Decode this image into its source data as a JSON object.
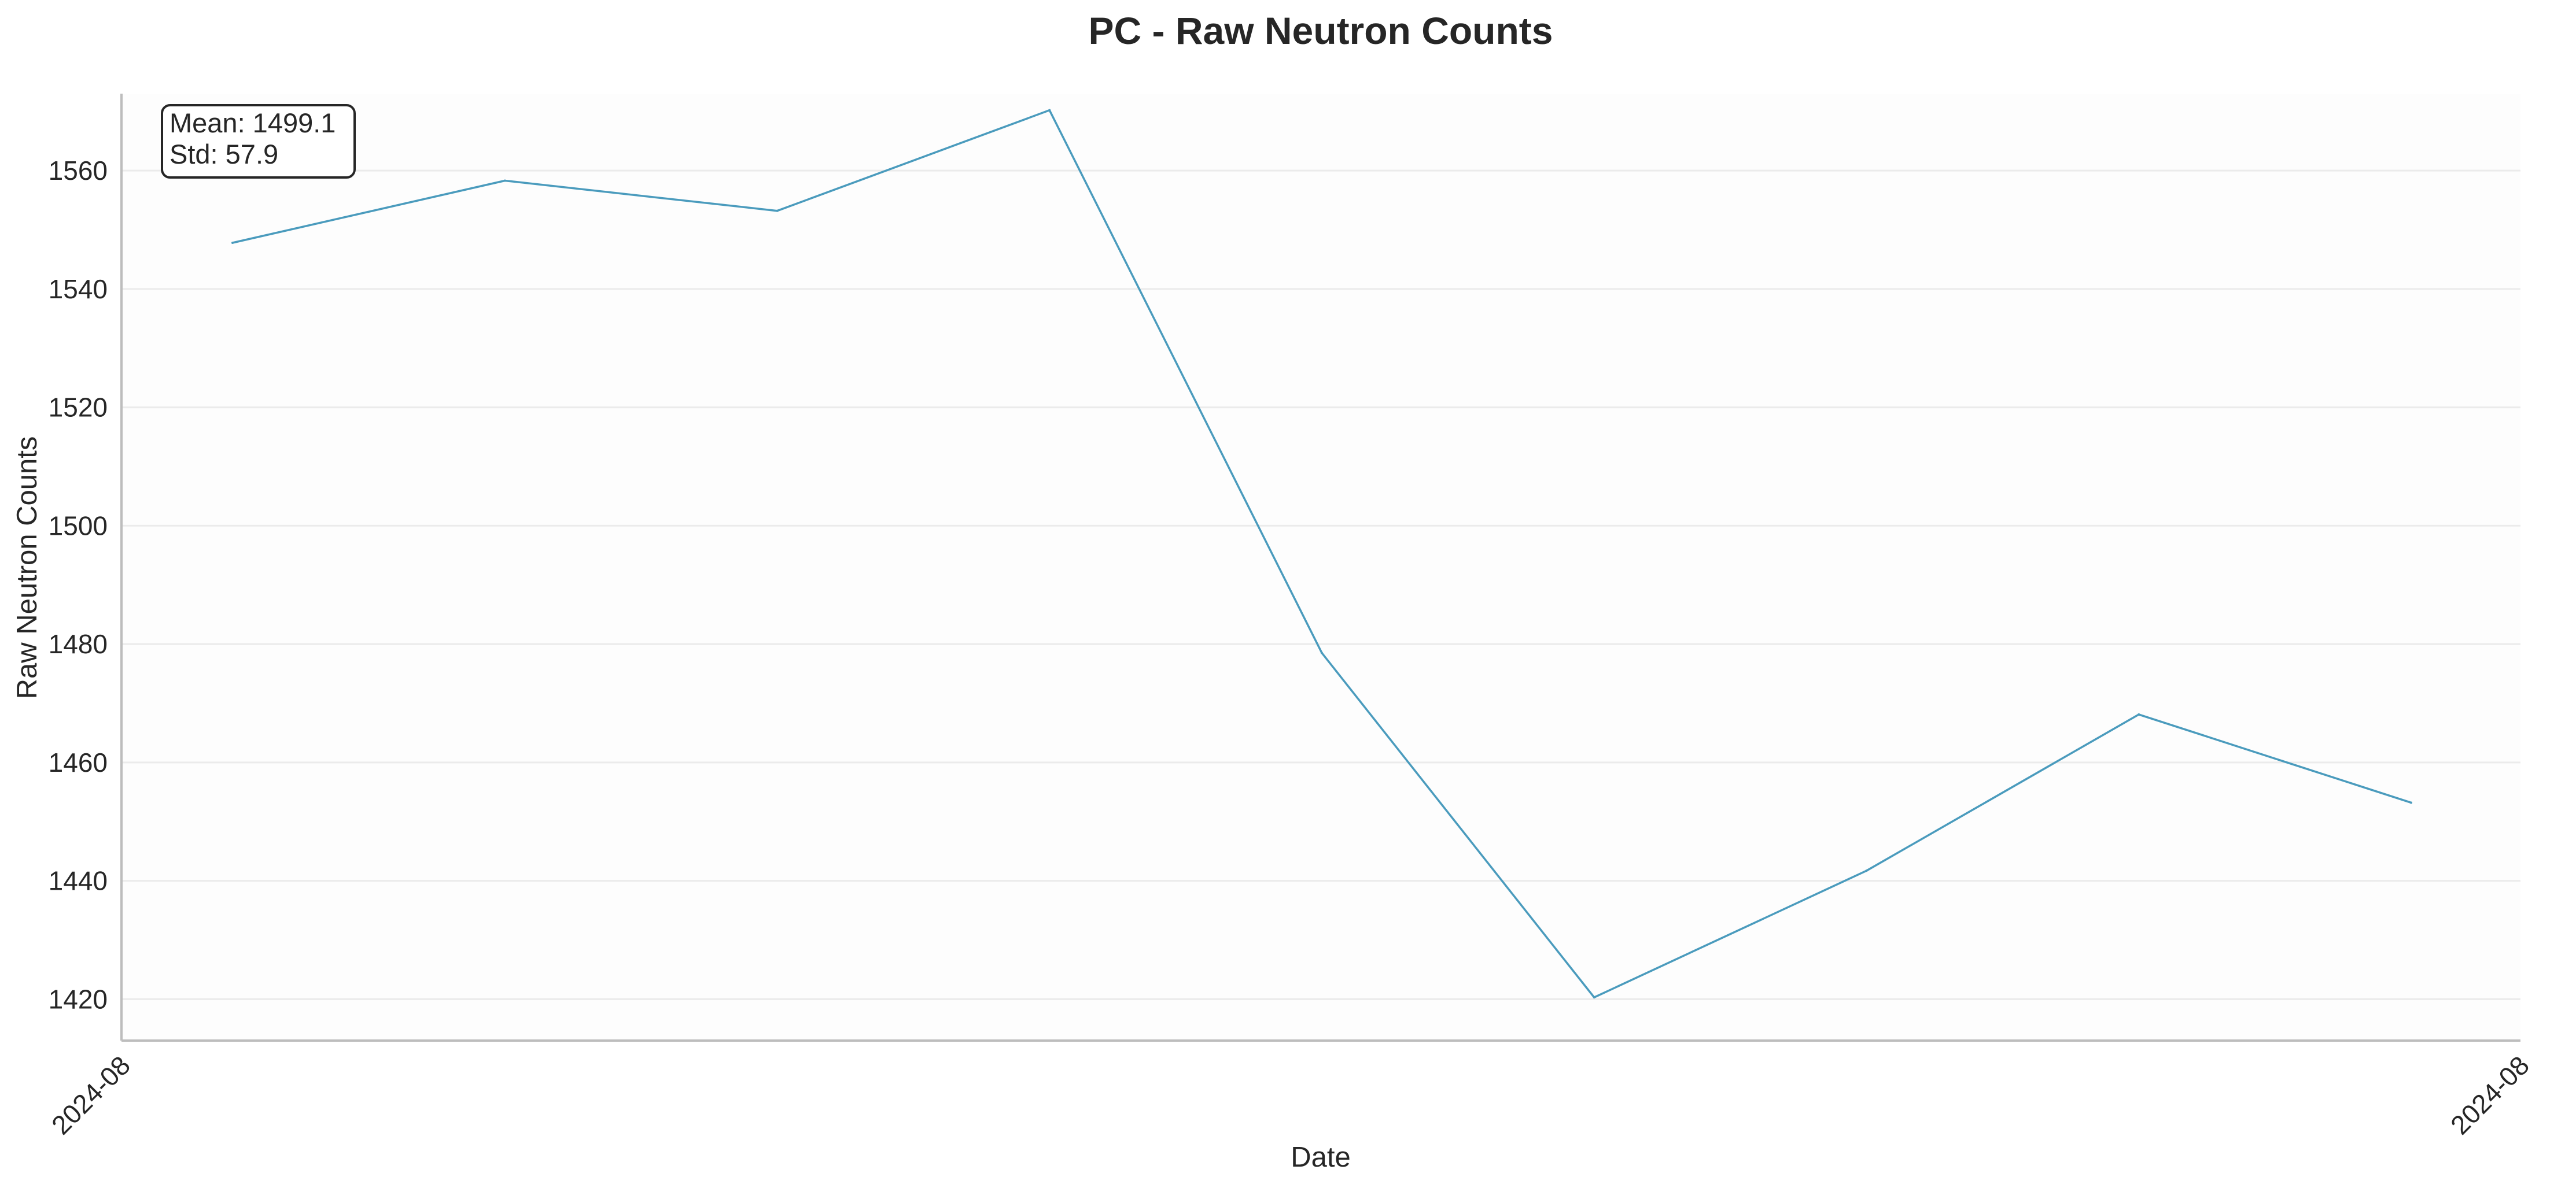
{
  "chart_data": {
    "type": "line",
    "title": "PC - Raw Neutron Counts",
    "xlabel": "Date",
    "ylabel": "Raw Neutron Counts",
    "x_ticks": [
      "2024-08",
      "2024-08"
    ],
    "y_ticks": [
      1420,
      1440,
      1460,
      1480,
      1500,
      1520,
      1540,
      1560
    ],
    "ylim": [
      1413,
      1573
    ],
    "grid": true,
    "annotation": {
      "mean_label": "Mean: 1499.1",
      "std_label": "Std: 57.9"
    },
    "series": [
      {
        "color": "#4a9bbd",
        "values": [
          1547.8,
          1558.3,
          1553.2,
          1570.2,
          1478.5,
          1420.3,
          1441.7,
          1468.1,
          1453.2
        ]
      }
    ]
  }
}
